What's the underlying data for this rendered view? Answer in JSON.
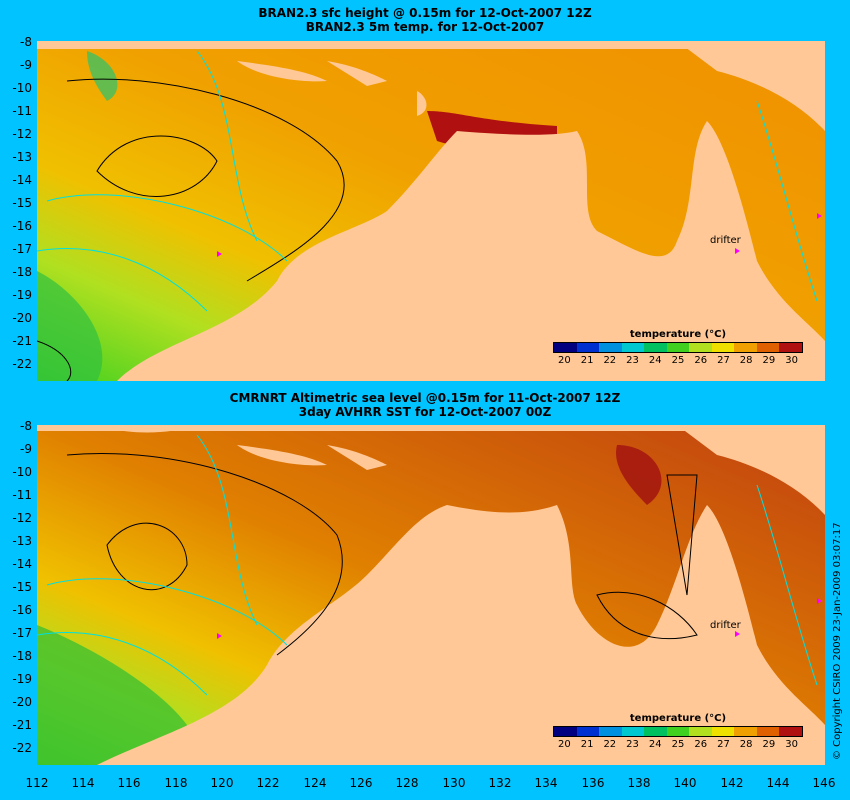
{
  "panels": [
    {
      "title_line1": "BRAN2.3 sfc height @ 0.15m for 12-Oct-2007 12Z",
      "title_line2": "BRAN2.3 5m temp. for 12-Oct-2007",
      "drifter_label": "drifter"
    },
    {
      "title_line1": "CMRNRT Altimetric sea level  @0.15m  for 11-Oct-2007 12Z",
      "title_line2": "3day AVHRR SST for 12-Oct-2007 00Z",
      "drifter_label": "drifter"
    }
  ],
  "legend": {
    "title": "temperature (°C)",
    "ticks": [
      "20",
      "21",
      "22",
      "23",
      "24",
      "25",
      "26",
      "27",
      "28",
      "29",
      "30"
    ],
    "colors": [
      "#000080",
      "#0030d0",
      "#0090e0",
      "#00c8d0",
      "#00c060",
      "#40d020",
      "#b0e020",
      "#f0e000",
      "#f0a000",
      "#e06000",
      "#b01010"
    ]
  },
  "axes": {
    "lat_labels": [
      "-8",
      "-9",
      "-10",
      "-11",
      "-12",
      "-13",
      "-14",
      "-15",
      "-16",
      "-17",
      "-18",
      "-19",
      "-20",
      "-21",
      "-22"
    ],
    "lon_labels": [
      "112",
      "114",
      "116",
      "118",
      "120",
      "122",
      "124",
      "126",
      "128",
      "130",
      "132",
      "134",
      "136",
      "138",
      "140",
      "142",
      "144",
      "146"
    ]
  },
  "credit": "© Copyright CSIRO 2009   23-Jan-2009 03:07:17",
  "colors": {
    "background": "#00c3ff",
    "land": "#ffc896",
    "contour": "#00e0e0"
  }
}
